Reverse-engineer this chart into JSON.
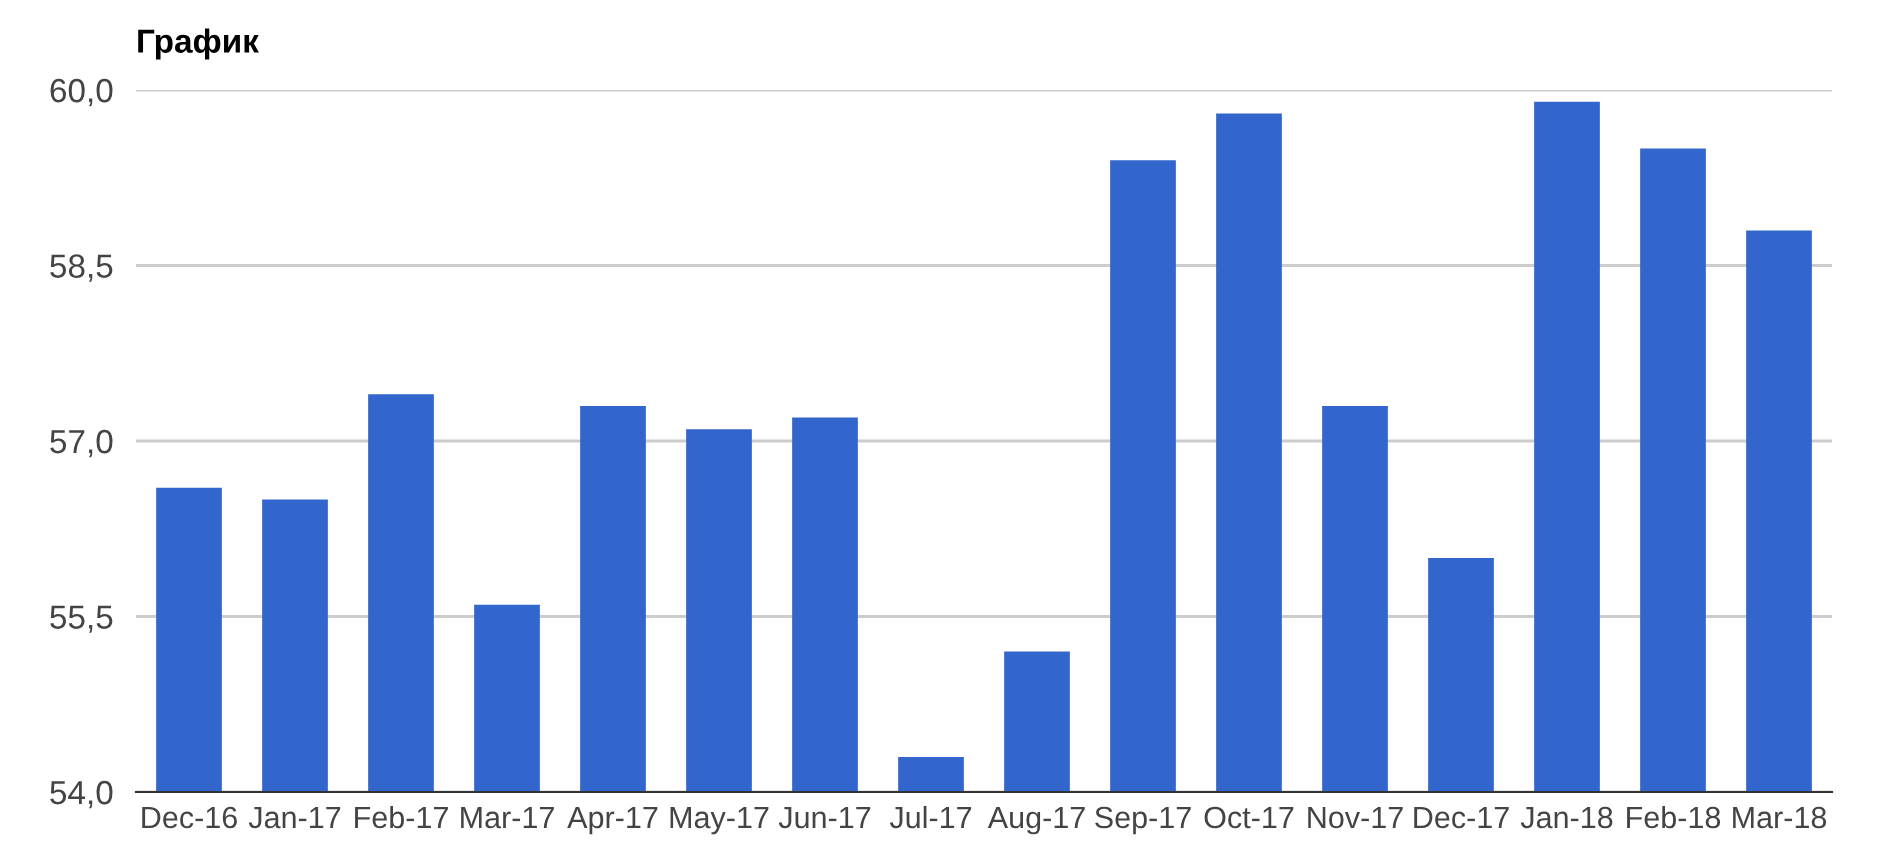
{
  "chart_data": {
    "type": "bar",
    "title": "График",
    "categories": [
      "Dec-16",
      "Jan-17",
      "Feb-17",
      "Mar-17",
      "Apr-17",
      "May-17",
      "Jun-17",
      "Jul-17",
      "Aug-17",
      "Sep-17",
      "Oct-17",
      "Nov-17",
      "Dec-17",
      "Jan-18",
      "Feb-18",
      "Mar-18"
    ],
    "values": [
      56.6,
      56.5,
      57.4,
      55.6,
      57.3,
      57.1,
      57.2,
      54.3,
      55.2,
      59.4,
      59.8,
      57.3,
      56.0,
      59.9,
      59.5,
      58.8
    ],
    "color": "#3366cc",
    "ylim": [
      54,
      60
    ],
    "yticks": [
      {
        "value": 54,
        "label": "54,0"
      },
      {
        "value": 55.5,
        "label": "55,5"
      },
      {
        "value": 57,
        "label": "57,0"
      },
      {
        "value": 58.5,
        "label": "58,5"
      },
      {
        "value": 60,
        "label": "60,0"
      }
    ],
    "grid": "y",
    "legend": false
  }
}
